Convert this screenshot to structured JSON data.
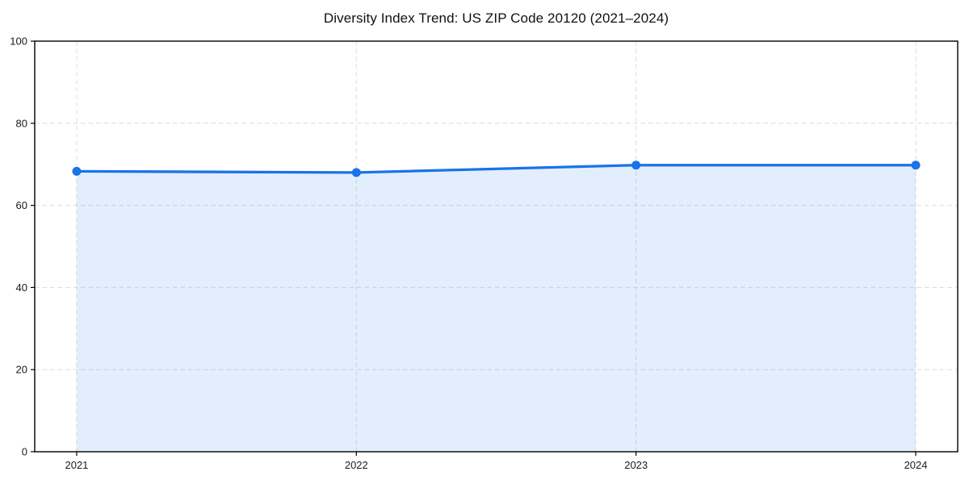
{
  "chart_data": {
    "type": "area",
    "title": "Diversity Index Trend: US ZIP Code 20120 (2021–2024)",
    "x": [
      2021,
      2022,
      2023,
      2024
    ],
    "xticks": [
      "2021",
      "2022",
      "2023",
      "2024"
    ],
    "series": [
      {
        "name": "Diversity Index",
        "values": [
          68.3,
          68.0,
          69.8,
          69.8
        ]
      }
    ],
    "xlabel": "",
    "ylabel": "",
    "ylim": [
      0,
      100
    ],
    "yticks": [
      0,
      20,
      40,
      60,
      80,
      100
    ],
    "grid": true,
    "grid_style": "dashed",
    "legend_position": "none",
    "colors": {
      "line": "#1a73e8",
      "marker": "#1a73e8",
      "fill": "rgba(26,115,232,0.12)",
      "grid": "#dcdcdc",
      "spine": "#000000",
      "tick_text": "#1a1a1a",
      "title_text": "#111111",
      "background": "#ffffff"
    }
  }
}
